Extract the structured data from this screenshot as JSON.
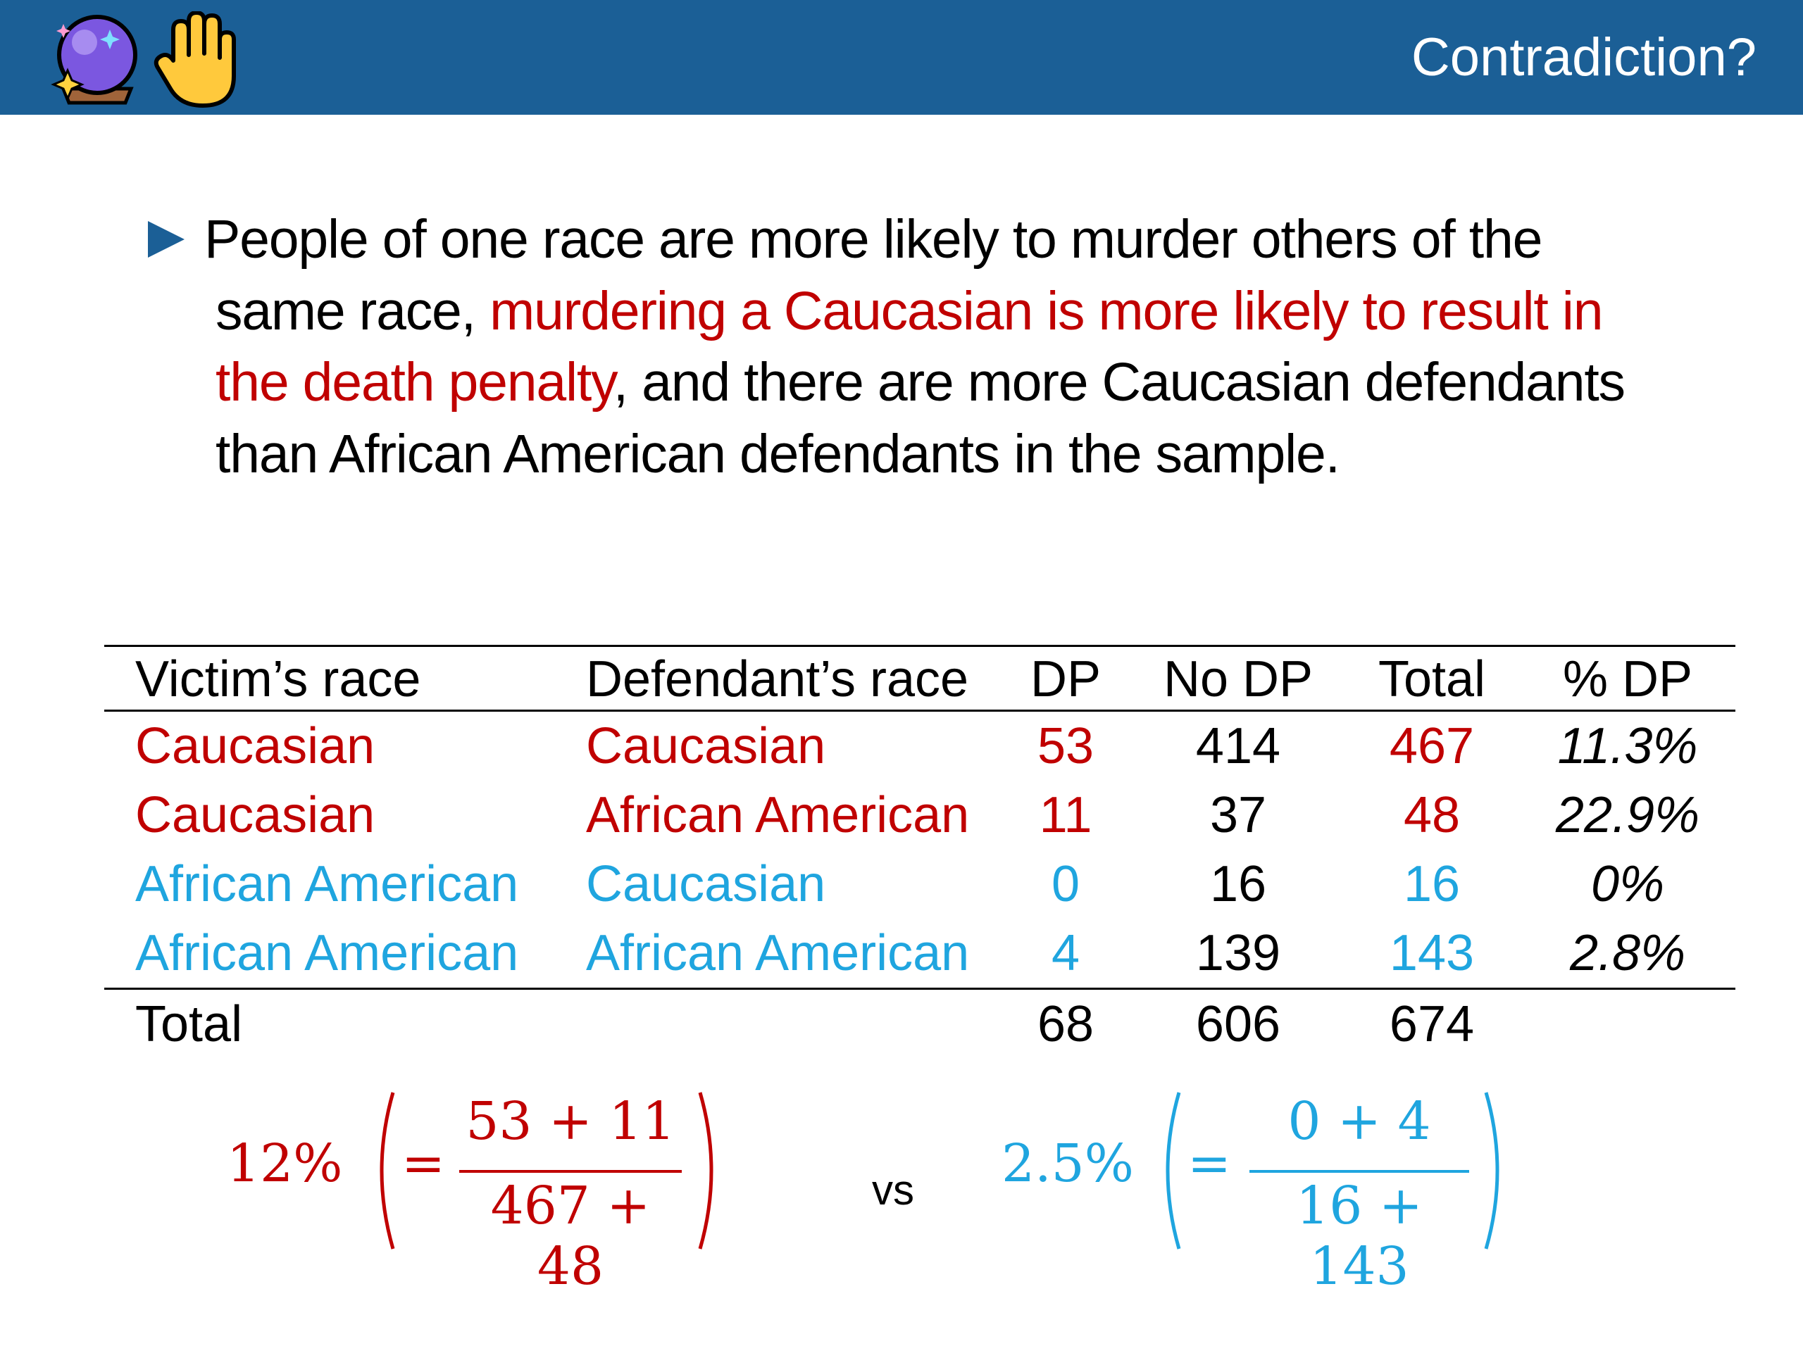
{
  "header": {
    "title": "Contradiction?",
    "icons": [
      "crystal-ball-icon",
      "raised-hand-icon"
    ],
    "background": "#1b5f96"
  },
  "bullet": {
    "icon": "triangle-bullet-icon",
    "text_before": "People of one race are more likely to murder others of the same race, ",
    "highlight": "murdering a Caucasian is more likely to result in the death penalty",
    "text_after": ", and there are more Caucasian defendants than African American defendants in the sample.",
    "highlight_color": "#c00000"
  },
  "table": {
    "columns": [
      "Victim’s race",
      "Defendant’s race",
      "DP",
      "No DP",
      "Total",
      "% DP"
    ],
    "rows": [
      {
        "victim": "Caucasian",
        "defendant": "Caucasian",
        "dp": "53",
        "no_dp": "414",
        "total": "467",
        "pct": "11.3%"
      },
      {
        "victim": "Caucasian",
        "defendant": "African American",
        "dp": "11",
        "no_dp": "37",
        "total": "48",
        "pct": "22.9%"
      },
      {
        "victim": "African American",
        "defendant": "Caucasian",
        "dp": "0",
        "no_dp": "16",
        "total": "16",
        "pct": "0%"
      },
      {
        "victim": "African American",
        "defendant": "African American",
        "dp": "4",
        "no_dp": "139",
        "total": "143",
        "pct": "2.8%"
      }
    ],
    "total_row": {
      "label": "Total",
      "dp": "68",
      "no_dp": "606",
      "total": "674"
    },
    "colors": {
      "caucasian_victim": "#c00000",
      "african_american_victim": "#1fa5df"
    }
  },
  "formulas": {
    "left": {
      "percent": "12%",
      "equals": "=",
      "numerator": "53 + 11",
      "denominator": "467 + 48",
      "color": "#c00000"
    },
    "comparison": "vs",
    "right": {
      "percent": "2.5%",
      "equals": "=",
      "numerator": "0 + 4",
      "denominator": "16 + 143",
      "color": "#1fa5df"
    }
  }
}
